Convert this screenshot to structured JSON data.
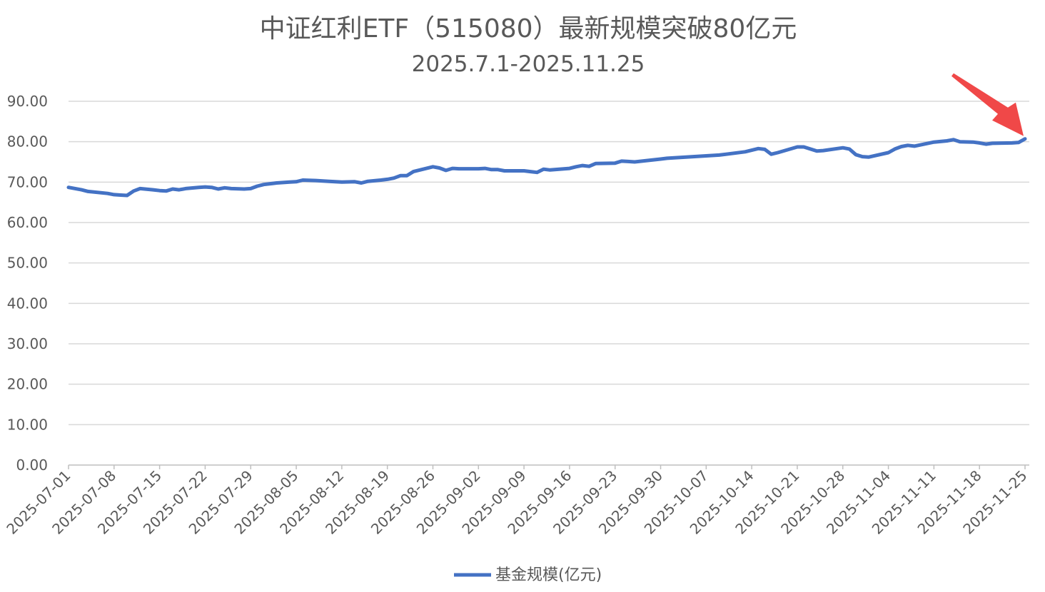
{
  "chart_data": {
    "type": "line",
    "title": "中证红利ETF（515080）最新规模突破80亿元",
    "subtitle": "2025.7.1-2025.11.25",
    "ylim": [
      0,
      90
    ],
    "yticks": [
      "0.00",
      "10.00",
      "20.00",
      "30.00",
      "40.00",
      "50.00",
      "60.00",
      "70.00",
      "80.00",
      "90.00"
    ],
    "xticks": [
      "2025-07-01",
      "2025-07-08",
      "2025-07-15",
      "2025-07-22",
      "2025-07-29",
      "2025-08-05",
      "2025-08-12",
      "2025-08-19",
      "2025-08-26",
      "2025-09-02",
      "2025-09-09",
      "2025-09-16",
      "2025-09-23",
      "2025-09-30",
      "2025-10-07",
      "2025-10-14",
      "2025-10-21",
      "2025-10-28",
      "2025-11-04",
      "2025-11-11",
      "2025-11-18",
      "2025-11-25"
    ],
    "x_start": "2025-07-01",
    "x_end": "2025-11-25",
    "grid": true,
    "legend_position": "bottom",
    "series": [
      {
        "name": "基金规模(亿元)",
        "color": "#4472c4",
        "points": [
          [
            "2025-07-01",
            68.7
          ],
          [
            "2025-07-03",
            68.1
          ],
          [
            "2025-07-04",
            67.7
          ],
          [
            "2025-07-07",
            67.2
          ],
          [
            "2025-07-08",
            66.9
          ],
          [
            "2025-07-09",
            66.8
          ],
          [
            "2025-07-10",
            66.7
          ],
          [
            "2025-07-11",
            67.8
          ],
          [
            "2025-07-12",
            68.4
          ],
          [
            "2025-07-14",
            68.1
          ],
          [
            "2025-07-15",
            67.9
          ],
          [
            "2025-07-16",
            67.8
          ],
          [
            "2025-07-17",
            68.3
          ],
          [
            "2025-07-18",
            68.1
          ],
          [
            "2025-07-19",
            68.4
          ],
          [
            "2025-07-21",
            68.7
          ],
          [
            "2025-07-22",
            68.8
          ],
          [
            "2025-07-23",
            68.7
          ],
          [
            "2025-07-24",
            68.3
          ],
          [
            "2025-07-25",
            68.6
          ],
          [
            "2025-07-26",
            68.4
          ],
          [
            "2025-07-28",
            68.3
          ],
          [
            "2025-07-29",
            68.4
          ],
          [
            "2025-07-30",
            69.0
          ],
          [
            "2025-07-31",
            69.4
          ],
          [
            "2025-08-02",
            69.8
          ],
          [
            "2025-08-04",
            70.0
          ],
          [
            "2025-08-05",
            70.1
          ],
          [
            "2025-08-06",
            70.5
          ],
          [
            "2025-08-08",
            70.4
          ],
          [
            "2025-08-10",
            70.2
          ],
          [
            "2025-08-12",
            70.0
          ],
          [
            "2025-08-14",
            70.1
          ],
          [
            "2025-08-15",
            69.8
          ],
          [
            "2025-08-16",
            70.2
          ],
          [
            "2025-08-18",
            70.5
          ],
          [
            "2025-08-19",
            70.7
          ],
          [
            "2025-08-20",
            71.0
          ],
          [
            "2025-08-21",
            71.6
          ],
          [
            "2025-08-22",
            71.6
          ],
          [
            "2025-08-23",
            72.6
          ],
          [
            "2025-08-26",
            73.8
          ],
          [
            "2025-08-27",
            73.5
          ],
          [
            "2025-08-28",
            72.9
          ],
          [
            "2025-08-29",
            73.4
          ],
          [
            "2025-08-30",
            73.3
          ],
          [
            "2025-09-02",
            73.3
          ],
          [
            "2025-09-03",
            73.4
          ],
          [
            "2025-09-04",
            73.1
          ],
          [
            "2025-09-05",
            73.1
          ],
          [
            "2025-09-06",
            72.8
          ],
          [
            "2025-09-09",
            72.8
          ],
          [
            "2025-09-10",
            72.6
          ],
          [
            "2025-09-11",
            72.4
          ],
          [
            "2025-09-12",
            73.2
          ],
          [
            "2025-09-13",
            73.0
          ],
          [
            "2025-09-16",
            73.4
          ],
          [
            "2025-09-17",
            73.8
          ],
          [
            "2025-09-18",
            74.1
          ],
          [
            "2025-09-19",
            73.9
          ],
          [
            "2025-09-20",
            74.6
          ],
          [
            "2025-09-23",
            74.7
          ],
          [
            "2025-09-24",
            75.2
          ],
          [
            "2025-09-25",
            75.1
          ],
          [
            "2025-09-26",
            75.0
          ],
          [
            "2025-09-30",
            75.7
          ],
          [
            "2025-10-01",
            75.9
          ],
          [
            "2025-10-09",
            76.7
          ],
          [
            "2025-10-13",
            77.5
          ],
          [
            "2025-10-15",
            78.3
          ],
          [
            "2025-10-16",
            78.1
          ],
          [
            "2025-10-17",
            76.9
          ],
          [
            "2025-10-18",
            77.3
          ],
          [
            "2025-10-21",
            78.7
          ],
          [
            "2025-10-22",
            78.7
          ],
          [
            "2025-10-24",
            77.7
          ],
          [
            "2025-10-25",
            77.8
          ],
          [
            "2025-10-28",
            78.5
          ],
          [
            "2025-10-29",
            78.2
          ],
          [
            "2025-10-30",
            76.8
          ],
          [
            "2025-10-31",
            76.3
          ],
          [
            "2025-11-01",
            76.2
          ],
          [
            "2025-11-04",
            77.3
          ],
          [
            "2025-11-05",
            78.2
          ],
          [
            "2025-11-06",
            78.8
          ],
          [
            "2025-11-07",
            79.1
          ],
          [
            "2025-11-08",
            78.9
          ],
          [
            "2025-11-11",
            79.9
          ],
          [
            "2025-11-13",
            80.2
          ],
          [
            "2025-11-14",
            80.5
          ],
          [
            "2025-11-15",
            80.0
          ],
          [
            "2025-11-17",
            79.9
          ],
          [
            "2025-11-18",
            79.7
          ],
          [
            "2025-11-19",
            79.4
          ],
          [
            "2025-11-20",
            79.6
          ],
          [
            "2025-11-23",
            79.7
          ],
          [
            "2025-11-24",
            79.8
          ],
          [
            "2025-11-25",
            80.7
          ]
        ]
      }
    ],
    "annotation": {
      "type": "arrow",
      "color": "#f04848",
      "target_date": "2025-11-25"
    }
  }
}
